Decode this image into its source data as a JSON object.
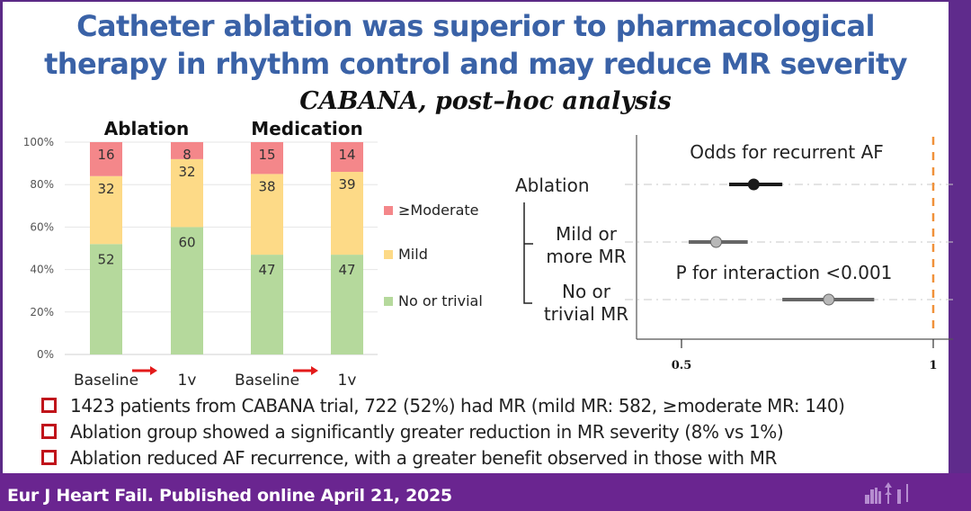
{
  "slide": {
    "title_line1": "Catheter ablation was superior to pharmacological",
    "title_line2": "therapy in rhythm control and may reduce MR severity",
    "subtitle": "CABANA, post–hoc analysis",
    "colors": {
      "title": "#3a62a7",
      "footer": "#6a2590",
      "bullet_box": "#c0141a"
    }
  },
  "bullets": [
    "1423 patients from CABANA trial, 722 (52%) had MR (mild MR: 582, ≥moderate MR: 140)",
    "Ablation group showed a significantly greater reduction in MR severity (8% vs 1%)",
    "Ablation reduced AF recurrence, with a greater benefit observed in those with MR"
  ],
  "footer": {
    "citation": "Eur J Heart Fail. Published online April 21, 2025"
  },
  "icons": {
    "bullet": "square-bullet-icon",
    "arrow": "red-arrow-right-icon",
    "footer_art": "city-skyline-icon"
  },
  "chart_data": [
    {
      "type": "bar",
      "stacked": true,
      "title": "",
      "group_labels": [
        "Ablation",
        "Medication"
      ],
      "categories": [
        "Baseline",
        "1y",
        "Baseline",
        "1y"
      ],
      "groups": [
        "Ablation",
        "Ablation",
        "Medication",
        "Medication"
      ],
      "series": [
        {
          "name": "No or trivial",
          "color": "#b5d99c",
          "values": [
            52,
            60,
            47,
            47
          ]
        },
        {
          "name": "Mild",
          "color": "#fdda87",
          "values": [
            32,
            32,
            38,
            39
          ]
        },
        {
          "name": "≥Moderate",
          "color": "#f4878a",
          "values": [
            16,
            8,
            15,
            14
          ]
        }
      ],
      "legend_order": [
        "≥Moderate",
        "Mild",
        "No or trivial"
      ],
      "legend_position": "right",
      "yticks": [
        "0%",
        "20%",
        "40%",
        "60%",
        "80%",
        "100%"
      ],
      "ylim": [
        0,
        100
      ],
      "xlabel": "",
      "ylabel": "",
      "grid": true
    },
    {
      "type": "scatter",
      "subtype": "forest",
      "title": "Odds for recurrent AF",
      "annotation": "P for interaction <0.001",
      "xscale": "log",
      "xlim": [
        0.42,
        1.05
      ],
      "xticks": [
        "0.5",
        "1"
      ],
      "reference_line": 1,
      "reference_color": "#f0913a",
      "rows": [
        {
          "label_lines": [
            "Ablation"
          ],
          "estimate": 0.61,
          "lower": 0.57,
          "upper": 0.66,
          "color": "#1a1a1a",
          "marker_fill": "#1a1a1a"
        },
        {
          "label_lines": [
            "Mild or",
            "more MR"
          ],
          "estimate": 0.55,
          "lower": 0.51,
          "upper": 0.6,
          "color": "#666666",
          "marker_fill": "#b8b8b8"
        },
        {
          "label_lines": [
            "No or",
            "trivial MR"
          ],
          "estimate": 0.75,
          "lower": 0.66,
          "upper": 0.85,
          "color": "#666666",
          "marker_fill": "#b8b8b8"
        }
      ]
    }
  ]
}
